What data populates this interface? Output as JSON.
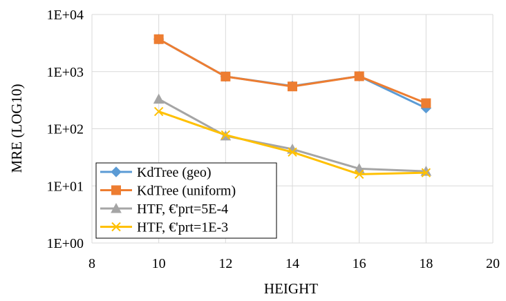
{
  "chart_data": {
    "type": "line",
    "y_scale": "log10",
    "xlabel": "HEIGHT",
    "ylabel": "MRE (LOG10)",
    "xlim": [
      8,
      20
    ],
    "xticks": [
      "8",
      "10",
      "12",
      "14",
      "16",
      "18",
      "20"
    ],
    "ylim": [
      1,
      10000
    ],
    "yticks": [
      "1E+00",
      "1E+01",
      "1E+02",
      "1E+03",
      "1E+04"
    ],
    "grid": true,
    "legend_position": "bottom-left",
    "x": [
      10,
      12,
      14,
      16,
      18
    ],
    "series": [
      {
        "name": "KdTree (geo)",
        "color": "#5B9BD5",
        "marker": "diamond",
        "values": [
          3700,
          820,
          560,
          830,
          230
        ]
      },
      {
        "name": "KdTree (uniform)",
        "color": "#ED7D31",
        "marker": "square",
        "values": [
          3700,
          820,
          550,
          830,
          280
        ]
      },
      {
        "name": "HTF, €'prt=5E-4",
        "color": "#A5A5A5",
        "marker": "triangle",
        "values": [
          330,
          75,
          44,
          20,
          18
        ]
      },
      {
        "name": "HTF, €'prt=1E-3",
        "color": "#FFC000",
        "marker": "x",
        "values": [
          200,
          78,
          39,
          16,
          17
        ]
      }
    ]
  }
}
